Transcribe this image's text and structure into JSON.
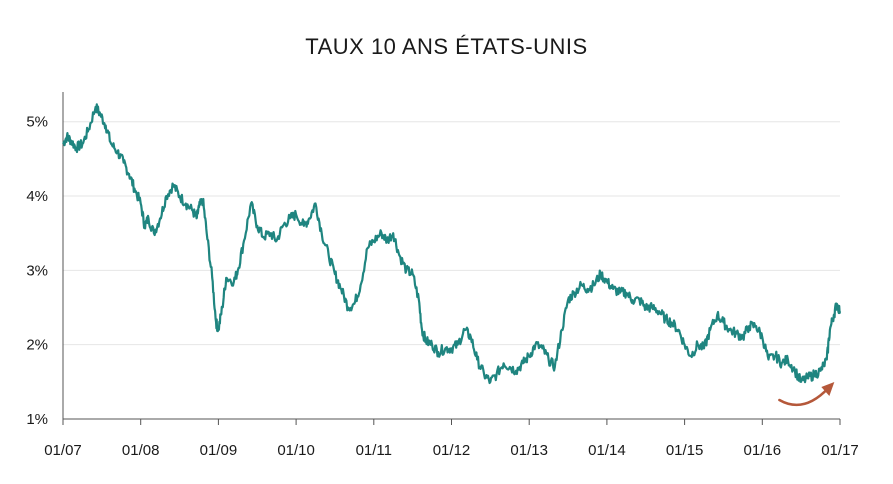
{
  "chart_data": {
    "type": "line",
    "title": "TAUX 10 ANS ÉTATS-UNIS",
    "xlabel": "",
    "ylabel": "",
    "x_ticks": [
      "01/07",
      "01/08",
      "01/09",
      "01/10",
      "01/11",
      "01/12",
      "01/13",
      "01/14",
      "01/15",
      "01/16",
      "01/17"
    ],
    "y_ticks": [
      "1%",
      "2%",
      "3%",
      "4%",
      "5%"
    ],
    "xlim": [
      2007.0,
      2017.0
    ],
    "ylim": [
      1.0,
      5.4
    ],
    "grid": "horizontal",
    "legend": "none",
    "annotation": "curved-arrow-up-right",
    "colors": {
      "line": "#1f8580",
      "arrow": "#b5583a",
      "axis": "#555555",
      "grid": "#e6e6e6"
    },
    "series": [
      {
        "x": [
          2007.0,
          2007.05,
          2007.1,
          2007.17,
          2007.25,
          2007.33,
          2007.42,
          2007.48,
          2007.55,
          2007.62,
          2007.7,
          2007.78,
          2007.85,
          2007.92,
          2008.0,
          2008.05,
          2008.1,
          2008.17,
          2008.25,
          2008.33,
          2008.42,
          2008.5,
          2008.58,
          2008.67,
          2008.72,
          2008.75,
          2008.8,
          2008.85,
          2008.92,
          2008.97,
          2009.0,
          2009.05,
          2009.1,
          2009.2,
          2009.25,
          2009.33,
          2009.42,
          2009.5,
          2009.58,
          2009.67,
          2009.75,
          2009.83,
          2009.92,
          2010.0,
          2010.1,
          2010.17,
          2010.25,
          2010.33,
          2010.42,
          2010.5,
          2010.58,
          2010.67,
          2010.75,
          2010.83,
          2010.92,
          2011.0,
          2011.1,
          2011.17,
          2011.25,
          2011.33,
          2011.42,
          2011.5,
          2011.58,
          2011.62,
          2011.67,
          2011.75,
          2011.83,
          2011.92,
          2012.0,
          2012.08,
          2012.17,
          2012.25,
          2012.33,
          2012.42,
          2012.5,
          2012.58,
          2012.67,
          2012.75,
          2012.83,
          2012.92,
          2013.0,
          2013.08,
          2013.17,
          2013.25,
          2013.33,
          2013.42,
          2013.5,
          2013.58,
          2013.67,
          2013.75,
          2013.83,
          2013.92,
          2014.0,
          2014.08,
          2014.17,
          2014.25,
          2014.33,
          2014.42,
          2014.5,
          2014.58,
          2014.67,
          2014.75,
          2014.83,
          2014.92,
          2015.0,
          2015.08,
          2015.17,
          2015.25,
          2015.33,
          2015.42,
          2015.5,
          2015.58,
          2015.67,
          2015.75,
          2015.83,
          2015.92,
          2016.0,
          2016.08,
          2016.17,
          2016.25,
          2016.33,
          2016.42,
          2016.5,
          2016.58,
          2016.67,
          2016.75,
          2016.83,
          2016.87,
          2016.92,
          2016.96,
          2017.0
        ],
        "values": [
          4.7,
          4.8,
          4.75,
          4.65,
          4.7,
          4.9,
          5.2,
          5.1,
          4.95,
          4.7,
          4.6,
          4.45,
          4.3,
          4.1,
          3.9,
          3.6,
          3.7,
          3.5,
          3.7,
          4.0,
          4.15,
          4.0,
          3.9,
          3.8,
          3.7,
          3.85,
          3.95,
          3.5,
          2.9,
          2.3,
          2.2,
          2.5,
          2.9,
          2.85,
          3.0,
          3.4,
          3.9,
          3.6,
          3.45,
          3.5,
          3.4,
          3.6,
          3.7,
          3.75,
          3.6,
          3.7,
          3.9,
          3.5,
          3.2,
          2.95,
          2.75,
          2.5,
          2.55,
          2.8,
          3.3,
          3.4,
          3.5,
          3.4,
          3.5,
          3.2,
          3.0,
          2.95,
          2.6,
          2.2,
          2.05,
          2.0,
          1.9,
          1.95,
          1.95,
          2.0,
          2.2,
          2.1,
          1.8,
          1.6,
          1.5,
          1.6,
          1.75,
          1.7,
          1.65,
          1.75,
          1.85,
          2.0,
          1.95,
          1.8,
          1.7,
          2.2,
          2.6,
          2.7,
          2.8,
          2.75,
          2.8,
          2.95,
          2.85,
          2.75,
          2.7,
          2.7,
          2.6,
          2.6,
          2.5,
          2.5,
          2.45,
          2.35,
          2.3,
          2.2,
          2.0,
          1.85,
          2.0,
          1.95,
          2.2,
          2.4,
          2.3,
          2.2,
          2.15,
          2.1,
          2.25,
          2.25,
          2.1,
          1.8,
          1.85,
          1.75,
          1.8,
          1.65,
          1.5,
          1.55,
          1.6,
          1.65,
          1.8,
          2.2,
          2.4,
          2.55,
          2.45
        ]
      }
    ]
  }
}
